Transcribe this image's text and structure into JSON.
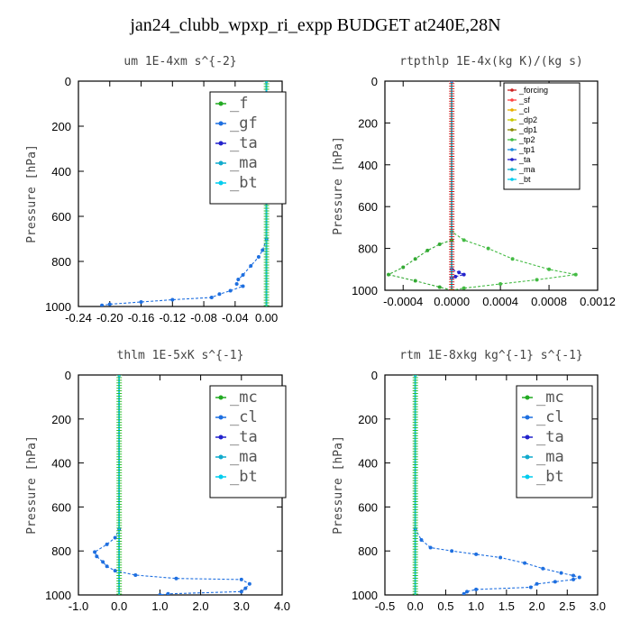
{
  "figure": {
    "title": "jan24_clubb_wpxp_ri_expp  BUDGET at240E,28N"
  },
  "chart_data": [
    {
      "type": "line",
      "title": "um   1E-4xm s^{-2}",
      "ylabel": "Pressure [hPa]",
      "xlim": [
        -0.24,
        0.02
      ],
      "ylim": [
        1000,
        0
      ],
      "xticks": [
        "-0.24",
        "-0.20",
        "-0.16",
        "-0.12",
        "-0.08",
        "-0.04",
        "0.00"
      ],
      "xtick_values": [
        -0.24,
        -0.2,
        -0.16,
        -0.12,
        -0.08,
        -0.04,
        0.0
      ],
      "yticks": [
        "0",
        "200",
        "400",
        "600",
        "800",
        "1000"
      ],
      "yvalues": [
        0,
        200,
        400,
        600,
        800,
        1000
      ],
      "legend_size": "big",
      "series": [
        {
          "name": "_f",
          "color": "#22aa22",
          "points": [
            [
              0,
              0
            ],
            [
              0,
              1000
            ]
          ]
        },
        {
          "name": "_gf",
          "color": "#1e6fe0",
          "points": [
            [
              0,
              0
            ],
            [
              0,
              700
            ],
            [
              -0.005,
              750
            ],
            [
              -0.01,
              780
            ],
            [
              -0.02,
              820
            ],
            [
              -0.03,
              860
            ],
            [
              -0.036,
              880
            ],
            [
              -0.038,
              900
            ],
            [
              -0.03,
              910
            ],
            [
              -0.046,
              930
            ],
            [
              -0.06,
              945
            ],
            [
              -0.07,
              960
            ],
            [
              -0.12,
              970
            ],
            [
              -0.16,
              980
            ],
            [
              -0.2,
              990
            ],
            [
              -0.21,
              995
            ]
          ]
        },
        {
          "name": "_ta",
          "color": "#2222cc",
          "points": [
            [
              0,
              0
            ],
            [
              0,
              1000
            ]
          ]
        },
        {
          "name": "_ma",
          "color": "#11aacc",
          "points": [
            [
              0,
              0
            ],
            [
              0,
              1000
            ]
          ]
        },
        {
          "name": "_bt",
          "color": "#00ccee",
          "points": [
            [
              0,
              0
            ],
            [
              0,
              1000
            ]
          ]
        }
      ]
    },
    {
      "type": "line",
      "title": "rtpthlp   1E-4x(kg K)/(kg s)",
      "ylabel": "Pressure [hPa]",
      "xlim": [
        -0.00055,
        0.0012
      ],
      "ylim": [
        1000,
        0
      ],
      "xticks": [
        "-0.0004",
        "0.0000",
        "0.0004",
        "0.0008",
        "0.0012"
      ],
      "xtick_values": [
        -0.0004,
        0.0,
        0.0004,
        0.0008,
        0.0012
      ],
      "yticks": [
        "0",
        "200",
        "400",
        "600",
        "800",
        "1000"
      ],
      "yvalues": [
        0,
        200,
        400,
        600,
        800,
        1000
      ],
      "legend_size": "small",
      "series": [
        {
          "name": "_forcing",
          "color": "#cc2222",
          "points": [
            [
              0,
              0
            ],
            [
              0,
              1000
            ]
          ]
        },
        {
          "name": "_sf",
          "color": "#ff4444",
          "points": [
            [
              0,
              0
            ],
            [
              0,
              1000
            ]
          ]
        },
        {
          "name": "_cl",
          "color": "#e8b000",
          "points": [
            [
              0,
              0
            ],
            [
              0,
              1000
            ]
          ]
        },
        {
          "name": "_dp2",
          "color": "#c8c800",
          "points": [
            [
              0,
              0
            ],
            [
              0,
              1000
            ]
          ]
        },
        {
          "name": "_dp1",
          "color": "#8a8a00",
          "points": [
            [
              0,
              0
            ],
            [
              0,
              1000
            ]
          ]
        },
        {
          "name": "_tp2",
          "color": "#44bb44",
          "points": [
            [
              0,
              0
            ],
            [
              0,
              720
            ],
            [
              0.0001,
              760
            ],
            [
              0.0003,
              800
            ],
            [
              0.0005,
              850
            ],
            [
              0.0008,
              900
            ],
            [
              0.00102,
              925
            ],
            [
              0.0007,
              950
            ],
            [
              0.0004,
              970
            ],
            [
              0.0001,
              990
            ],
            [
              0,
              1000
            ]
          ]
        },
        {
          "name": "_tp1",
          "color": "#1e8adc",
          "points": [
            [
              0,
              0
            ],
            [
              0,
              1000
            ]
          ]
        },
        {
          "name": "_ta",
          "color": "#2222cc",
          "points": [
            [
              0,
              0
            ],
            [
              0,
              900
            ],
            [
              6e-05,
              915
            ],
            [
              0.0001,
              925
            ],
            [
              3e-05,
              935
            ],
            [
              0,
              940
            ],
            [
              0,
              1000
            ]
          ]
        },
        {
          "name": "_ma",
          "color": "#11aacc",
          "points": [
            [
              0,
              0
            ],
            [
              0,
              1000
            ]
          ]
        },
        {
          "name": "_bt",
          "color": "#00ccee",
          "points": [
            [
              0,
              0
            ],
            [
              0,
              1000
            ]
          ]
        },
        {
          "name": "",
          "color": "#33aa33",
          "points": [
            [
              0,
              760
            ],
            [
              -0.0001,
              780
            ],
            [
              -0.0002,
              810
            ],
            [
              -0.0003,
              850
            ],
            [
              -0.0004,
              890
            ],
            [
              -0.00052,
              925
            ],
            [
              -0.0003,
              955
            ],
            [
              -0.0001,
              985
            ],
            [
              0,
              1000
            ]
          ]
        }
      ]
    },
    {
      "type": "line",
      "title": "thlm   1E-5xK s^{-1}",
      "ylabel": "Pressure [hPa]",
      "xlim": [
        -1.0,
        4.0
      ],
      "ylim": [
        1000,
        0
      ],
      "xticks": [
        "-1.0",
        "0.0",
        "1.0",
        "2.0",
        "3.0",
        "4.0"
      ],
      "xtick_values": [
        -1.0,
        0.0,
        1.0,
        2.0,
        3.0,
        4.0
      ],
      "yticks": [
        "0",
        "200",
        "400",
        "600",
        "800",
        "1000"
      ],
      "yvalues": [
        0,
        200,
        400,
        600,
        800,
        1000
      ],
      "legend_size": "big",
      "series": [
        {
          "name": "_mc",
          "color": "#22aa22",
          "points": [
            [
              0,
              0
            ],
            [
              0,
              1000
            ]
          ]
        },
        {
          "name": "_cl",
          "color": "#1e6fe0",
          "points": [
            [
              0,
              0
            ],
            [
              0,
              700
            ],
            [
              -0.1,
              740
            ],
            [
              -0.3,
              770
            ],
            [
              -0.6,
              805
            ],
            [
              -0.55,
              825
            ],
            [
              -0.4,
              850
            ],
            [
              -0.3,
              870
            ],
            [
              -0.1,
              890
            ],
            [
              0.4,
              910
            ],
            [
              1.4,
              925
            ],
            [
              3.0,
              930
            ],
            [
              3.2,
              950
            ],
            [
              3.1,
              970
            ],
            [
              3.0,
              985
            ],
            [
              1.2,
              995
            ],
            [
              1.0,
              1000
            ]
          ]
        },
        {
          "name": "_ta",
          "color": "#2222cc",
          "points": [
            [
              0,
              0
            ],
            [
              0,
              1000
            ]
          ]
        },
        {
          "name": "_ma",
          "color": "#11aacc",
          "points": [
            [
              0,
              0
            ],
            [
              0,
              1000
            ]
          ]
        },
        {
          "name": "_bt",
          "color": "#00ccee",
          "points": [
            [
              0,
              0
            ],
            [
              0,
              1000
            ]
          ]
        }
      ]
    },
    {
      "type": "line",
      "title": "rtm   1E-8xkg kg^{-1} s^{-1}",
      "ylabel": "Pressure [hPa]",
      "xlim": [
        -0.5,
        3.0
      ],
      "ylim": [
        1000,
        0
      ],
      "xticks": [
        "-0.5",
        "0.0",
        "0.5",
        "1.0",
        "1.5",
        "2.0",
        "2.5",
        "3.0"
      ],
      "xtick_values": [
        -0.5,
        0.0,
        0.5,
        1.0,
        1.5,
        2.0,
        2.5,
        3.0
      ],
      "yticks": [
        "0",
        "200",
        "400",
        "600",
        "800",
        "1000"
      ],
      "yvalues": [
        0,
        200,
        400,
        600,
        800,
        1000
      ],
      "legend_size": "big",
      "series": [
        {
          "name": "_mc",
          "color": "#22aa22",
          "points": [
            [
              0,
              0
            ],
            [
              0,
              1000
            ]
          ]
        },
        {
          "name": "_cl",
          "color": "#1e6fe0",
          "points": [
            [
              0,
              0
            ],
            [
              0,
              700
            ],
            [
              0.1,
              750
            ],
            [
              0.25,
              785
            ],
            [
              0.6,
              800
            ],
            [
              1.0,
              815
            ],
            [
              1.4,
              830
            ],
            [
              1.8,
              855
            ],
            [
              2.1,
              880
            ],
            [
              2.4,
              900
            ],
            [
              2.6,
              912
            ],
            [
              2.7,
              920
            ],
            [
              2.6,
              930
            ],
            [
              2.3,
              940
            ],
            [
              2.0,
              950
            ],
            [
              1.9,
              965
            ],
            [
              1.0,
              975
            ],
            [
              0.85,
              985
            ],
            [
              0.8,
              995
            ]
          ]
        },
        {
          "name": "_ta",
          "color": "#2222cc",
          "points": [
            [
              0,
              0
            ],
            [
              0,
              1000
            ]
          ]
        },
        {
          "name": "_ma",
          "color": "#11aacc",
          "points": [
            [
              0,
              0
            ],
            [
              0,
              1000
            ]
          ]
        },
        {
          "name": "_bt",
          "color": "#00ccee",
          "points": [
            [
              0,
              0
            ],
            [
              0,
              1000
            ]
          ]
        }
      ]
    }
  ]
}
